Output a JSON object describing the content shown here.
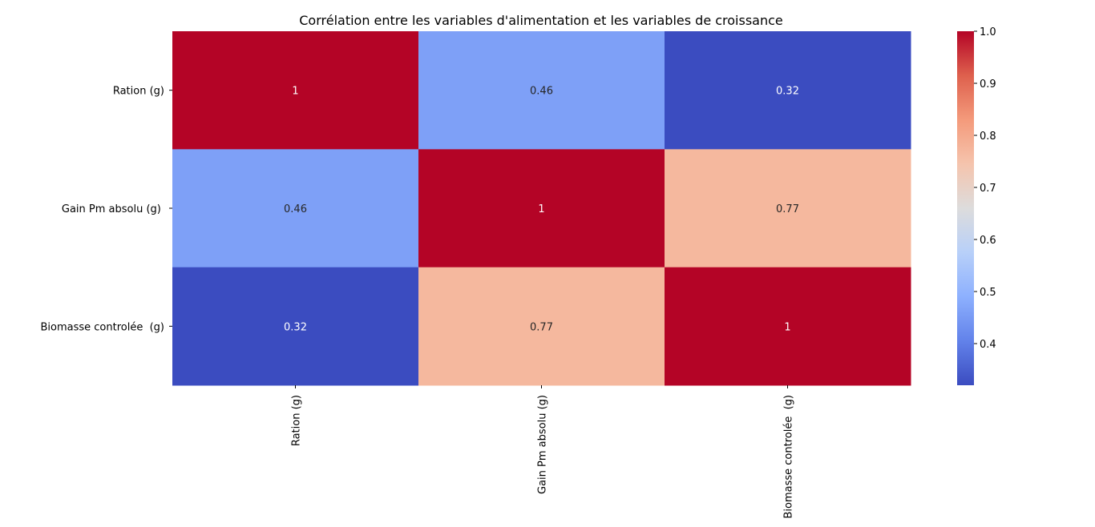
{
  "chart_data": {
    "type": "heatmap",
    "title": "Corrélation entre les variables d'alimentation et les variables de croissance",
    "row_labels": [
      "Ration (g)",
      "Gain Pm absolu (g) ",
      "Biomasse controlée  (g)"
    ],
    "col_labels": [
      "Ration (g)",
      "Gain Pm absolu (g)",
      "Biomasse controlée  (g)"
    ],
    "values": [
      [
        1.0,
        0.46,
        0.32
      ],
      [
        0.46,
        1.0,
        0.77
      ],
      [
        0.32,
        0.77,
        1.0
      ]
    ],
    "annotations": [
      [
        "1",
        "0.46",
        "0.32"
      ],
      [
        "0.46",
        "1",
        "0.77"
      ],
      [
        "0.32",
        "0.77",
        "1"
      ]
    ],
    "colormap": "coolwarm",
    "colorbar": {
      "vmin": 0.32,
      "vmax": 1.0,
      "ticks": [
        0.4,
        0.5,
        0.6,
        0.7,
        0.8,
        0.9,
        1.0
      ],
      "tick_labels": [
        "0.4",
        "0.5",
        "0.6",
        "0.7",
        "0.8",
        "0.9",
        "1.0"
      ]
    },
    "colors": {
      "low": "#3b4cc0",
      "mid": "#dddcdc",
      "high": "#b40426"
    },
    "grid": false,
    "legend": "colorbar-right"
  }
}
